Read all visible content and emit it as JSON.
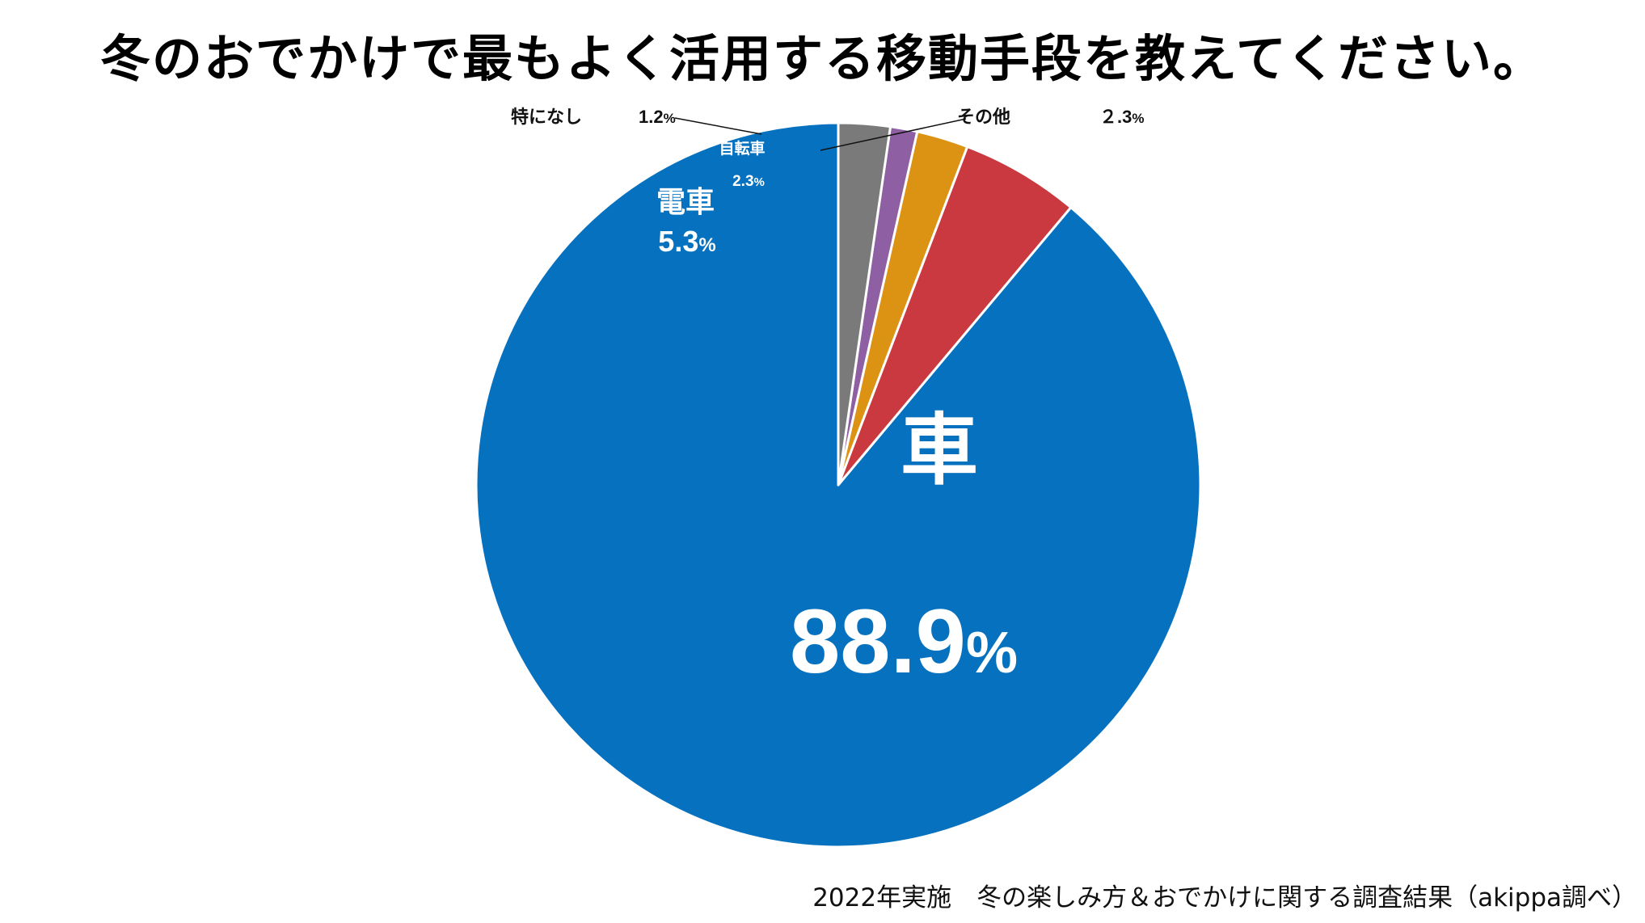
{
  "chart_data": {
    "type": "pie",
    "title": "冬のおでかけで最もよく活用する移動手段を教えてください。",
    "slices": [
      {
        "label": "車",
        "value": 88.9,
        "value_text": "88.9",
        "color": "#0671be"
      },
      {
        "label": "電車",
        "value": 5.3,
        "value_text": "5.3",
        "color": "#c9393f"
      },
      {
        "label": "自転車",
        "value": 2.3,
        "value_text": "2.3",
        "color": "#dc9313"
      },
      {
        "label": "特になし",
        "value": 1.2,
        "value_text": "1.2",
        "color": "#8e5fa2"
      },
      {
        "label": "その他",
        "value": 2.3,
        "value_text": "２.3",
        "color": "#7a7a7a"
      }
    ],
    "percent_sign": "%",
    "start_angle": "12 o'clock",
    "direction": "counter-clockwise"
  },
  "footer": {
    "source": "2022年実施　冬の楽しみ方＆おでかけに関する調査結果（akippa調べ）"
  }
}
